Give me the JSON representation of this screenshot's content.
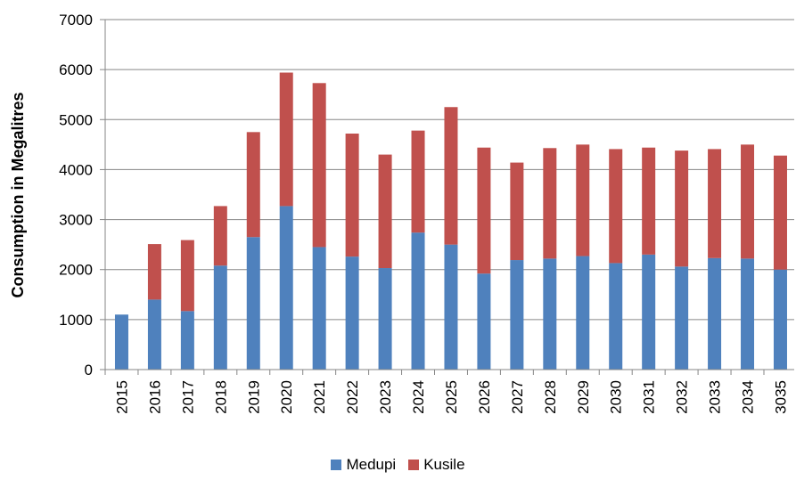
{
  "chart_data": {
    "type": "bar",
    "stacked": true,
    "title": "",
    "xlabel": "",
    "ylabel": "Consumption in Megalitres",
    "ylim": [
      0,
      7000
    ],
    "yticks": [
      0,
      1000,
      2000,
      3000,
      4000,
      5000,
      6000,
      7000
    ],
    "y_tick_labels": [
      "0",
      "1000",
      "2000",
      "3000",
      "4000",
      "5000",
      "6000",
      "7000"
    ],
    "grid": "horizontal",
    "legend_position": "bottom",
    "categories": [
      "2015",
      "2016",
      "2017",
      "2018",
      "2019",
      "2020",
      "2021",
      "2022",
      "2023",
      "2024",
      "2025",
      "2026",
      "2027",
      "2028",
      "2029",
      "2030",
      "2031",
      "2032",
      "2033",
      "2034",
      "3035"
    ],
    "series": [
      {
        "name": "Medupi",
        "color": "#4F81BD",
        "values": [
          1100,
          1400,
          1170,
          2080,
          2650,
          3270,
          2450,
          2260,
          2030,
          2740,
          2500,
          1920,
          2190,
          2220,
          2270,
          2130,
          2300,
          2060,
          2230,
          2220,
          2000
        ]
      },
      {
        "name": "Kusile",
        "color": "#C0504D",
        "values": [
          0,
          1110,
          1420,
          1190,
          2100,
          2670,
          3280,
          2460,
          2270,
          2040,
          2750,
          2520,
          1950,
          2210,
          2230,
          2280,
          2140,
          2320,
          2180,
          2280,
          2280
        ]
      }
    ]
  }
}
